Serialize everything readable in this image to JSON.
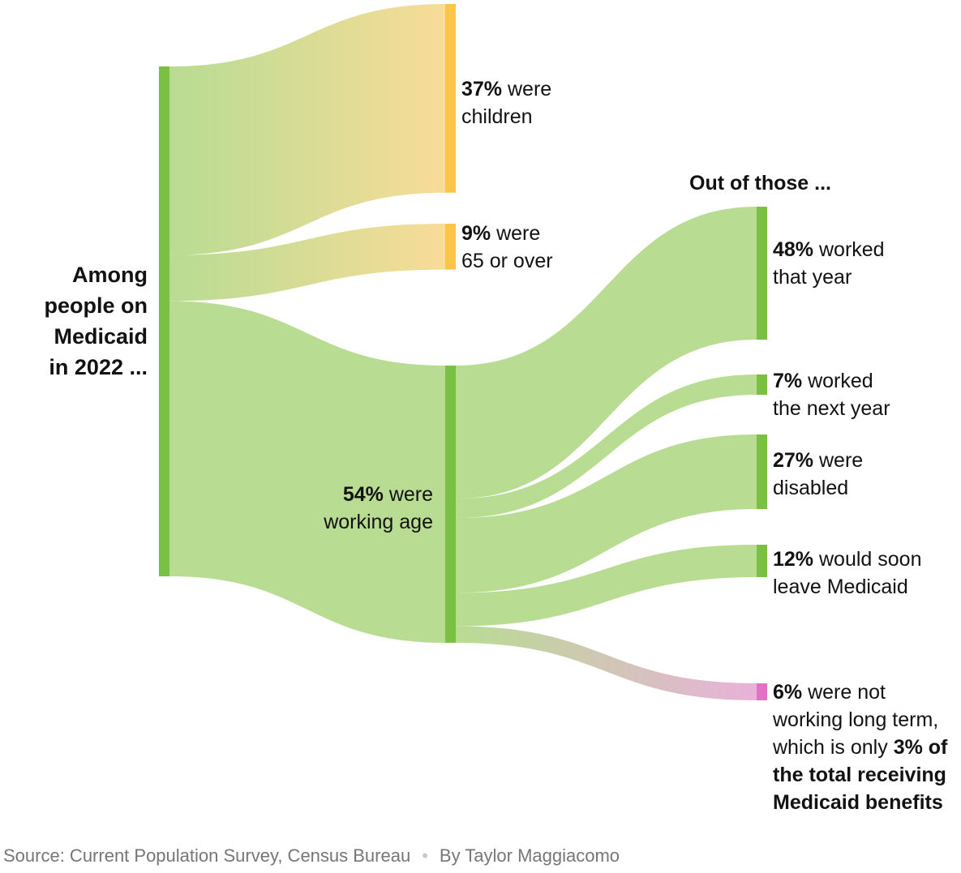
{
  "colors": {
    "green_node": "#7ac143",
    "green_link": "#b8dc92",
    "yellow_node": "#fbc54a",
    "yellow_link": "#f8dc98",
    "pink_node": "#e371c4",
    "pink_link": "#e9b1d9"
  },
  "chart_data": {
    "type": "sankey",
    "nodes": [
      {
        "id": "root",
        "label": "Among people on Medicaid in 2022 ..."
      },
      {
        "id": "children",
        "pct": "37%",
        "text": "were children"
      },
      {
        "id": "over65",
        "pct": "9%",
        "text": "were 65 or over"
      },
      {
        "id": "working_age",
        "pct": "54%",
        "text": "were working age"
      },
      {
        "id": "worked",
        "pct": "48%",
        "text": "worked that year"
      },
      {
        "id": "worked_next",
        "pct": "7%",
        "text": "worked the next year"
      },
      {
        "id": "disabled",
        "pct": "27%",
        "text": "were disabled"
      },
      {
        "id": "leave",
        "pct": "12%",
        "text": "would soon leave Medicaid"
      },
      {
        "id": "not_working",
        "pct": "6%",
        "text": "were not working long term, which is only",
        "emphasis": "3% of the total receiving Medicaid benefits"
      }
    ],
    "links": [
      {
        "source": "root",
        "target": "children",
        "value": 37
      },
      {
        "source": "root",
        "target": "over65",
        "value": 9
      },
      {
        "source": "root",
        "target": "working_age",
        "value": 54
      },
      {
        "source": "working_age",
        "target": "worked",
        "value": 48
      },
      {
        "source": "working_age",
        "target": "worked_next",
        "value": 7
      },
      {
        "source": "working_age",
        "target": "disabled",
        "value": 27
      },
      {
        "source": "working_age",
        "target": "leave",
        "value": 12
      },
      {
        "source": "working_age",
        "target": "not_working",
        "value": 6
      }
    ],
    "subheader": "Out of those ..."
  },
  "labels": {
    "root": [
      "Among",
      "people on",
      "Medicaid",
      "in 2022 ..."
    ],
    "children": {
      "pct": "37%",
      "l1": "were",
      "l2": "children"
    },
    "over65": {
      "pct": "9%",
      "l1": "were",
      "l2": "65 or over"
    },
    "working_age": {
      "pct": "54%",
      "l1": "were",
      "l2": "working age"
    },
    "worked": {
      "pct": "48%",
      "l1": "worked",
      "l2": "that year"
    },
    "worked_next": {
      "pct": "7%",
      "l1": "worked",
      "l2": "the next year"
    },
    "disabled": {
      "pct": "27%",
      "l1": "were",
      "l2": "disabled"
    },
    "leave": {
      "pct": "12%",
      "l1": "would soon",
      "l2": "leave Medicaid"
    },
    "not_working": {
      "pct": "6%",
      "l1": "were not",
      "l2": "working long term,",
      "l3": "which is only",
      "l3b": "3% of",
      "l4": "the total receiving",
      "l5": "Medicaid benefits"
    },
    "subheader": "Out of those ..."
  },
  "footer": {
    "source": "Source: Current Population Survey, Census Bureau",
    "separator": "•",
    "byline": "By Taylor Maggiacomo"
  }
}
